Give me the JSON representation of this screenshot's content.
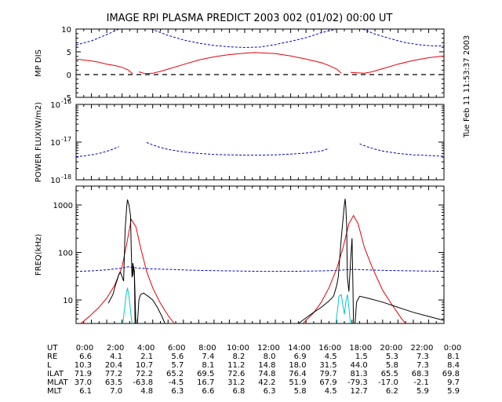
{
  "title": "IMAGE  RPI PLASMA PREDICT 2003 002 (01/02) 00:00 UT",
  "timestamp": "Tue Feb 11 11:53:37 2003",
  "colors": {
    "red": "#e8000b",
    "blue": "#0000c8",
    "black": "#000000",
    "cyan": "#00c8c8"
  },
  "chart_data": [
    {
      "type": "line",
      "panel": "mp_dis",
      "ylabel": "MP DIS",
      "ylim": [
        -5,
        10
      ],
      "yticks": [
        "-5",
        "0",
        "5",
        "10"
      ],
      "xlim": [
        0,
        24
      ],
      "reference_line": {
        "y": 0,
        "style": "dashed"
      },
      "series": [
        {
          "color": "blue",
          "x": [
            0,
            1,
            2,
            2.8
          ],
          "y": [
            6.5,
            7.4,
            8.8,
            10
          ]
        },
        {
          "color": "blue",
          "x": [
            4.9,
            6,
            7,
            8,
            9,
            10,
            11,
            12,
            13,
            14,
            15,
            16,
            17
          ],
          "y": [
            10,
            8.6,
            7.6,
            6.9,
            6.4,
            6.1,
            5.95,
            6.05,
            6.6,
            7.3,
            8.1,
            9.2,
            10
          ]
        },
        {
          "color": "blue",
          "x": [
            18.7,
            19.5,
            20.5,
            21.5,
            22.5,
            23.3,
            24
          ],
          "y": [
            10,
            8.9,
            7.9,
            7.0,
            6.5,
            6.3,
            6.3
          ]
        },
        {
          "color": "red",
          "x": [
            0,
            0.5,
            1,
            1.5,
            2,
            2.5,
            3,
            3.4,
            3.7
          ],
          "y": [
            3.4,
            3.2,
            3.0,
            2.7,
            2.3,
            2.0,
            1.6,
            1.0,
            0.15
          ]
        },
        {
          "color": "red",
          "x": [
            4.1,
            4.5,
            5,
            5.5,
            6,
            7,
            8,
            9,
            10,
            11,
            11.7,
            12,
            13,
            14,
            15,
            16,
            16.5,
            17,
            17.3
          ],
          "y": [
            0.6,
            0.2,
            0.3,
            0.7,
            1.2,
            2.2,
            3.2,
            3.9,
            4.4,
            4.7,
            4.85,
            4.8,
            4.6,
            4.1,
            3.4,
            2.6,
            2.0,
            1.2,
            0.3
          ]
        },
        {
          "color": "red",
          "x": [
            17.9,
            18.3,
            18.8,
            19.3,
            20,
            21,
            22,
            23,
            24
          ],
          "y": [
            0.5,
            0.4,
            0.3,
            0.6,
            1.3,
            2.3,
            3.1,
            3.7,
            4.1
          ]
        }
      ]
    },
    {
      "type": "line",
      "panel": "power_flux",
      "ylabel": "POWER FLUX(W/m2)",
      "yscale": "log",
      "ylim": [
        1e-18,
        1e-16
      ],
      "yticks": [
        "10",
        "10",
        "10"
      ],
      "ytick_exponents": [
        "-18",
        "-17",
        "-16"
      ],
      "xlim": [
        0,
        24
      ],
      "series": [
        {
          "color": "blue",
          "x": [
            0,
            0.5,
            1,
            1.5,
            2,
            2.5,
            2.8
          ],
          "y": [
            4.1e-18,
            4.3e-18,
            4.6e-18,
            5e-18,
            5.7e-18,
            6.7e-18,
            7.6e-18
          ]
        },
        {
          "color": "blue",
          "x": [
            4.6,
            5,
            5.5,
            6,
            7,
            8,
            9,
            10,
            11,
            12,
            13,
            14,
            15,
            16,
            16.5
          ],
          "y": [
            9.8e-18,
            8.4e-18,
            7.2e-18,
            6.4e-18,
            5.5e-18,
            5e-18,
            4.7e-18,
            4.6e-18,
            4.5e-18,
            4.5e-18,
            4.6e-18,
            4.8e-18,
            5.1e-18,
            5.8e-18,
            6.8e-18
          ]
        },
        {
          "color": "blue",
          "x": [
            18.5,
            19,
            19.5,
            20,
            21,
            22,
            23,
            24
          ],
          "y": [
            9e-18,
            7.5e-18,
            6.5e-18,
            5.8e-18,
            5e-18,
            4.6e-18,
            4.4e-18,
            4.2e-18
          ]
        }
      ]
    },
    {
      "type": "line",
      "panel": "freq",
      "ylabel": "FREQ(kHz)",
      "yscale": "log",
      "ylim": [
        3.2,
        2500
      ],
      "yticks": [
        "10",
        "100",
        "1000"
      ],
      "xlim": [
        0,
        24
      ],
      "series": [
        {
          "color": "blue",
          "x": [
            0,
            1,
            2,
            3,
            3.4,
            4,
            5,
            6,
            8,
            10,
            12,
            14,
            16,
            17,
            18,
            20,
            22,
            24
          ],
          "y": [
            40,
            41,
            43,
            47,
            50,
            47,
            45,
            44,
            42,
            41,
            40,
            40,
            41,
            42,
            44,
            42,
            41,
            40
          ]
        },
        {
          "color": "red",
          "x": [
            0.3,
            0.8,
            1.5,
            2,
            2.5,
            3,
            3.3,
            3.6,
            3.9,
            4.2,
            4.6,
            5,
            5.5,
            6,
            6.4
          ],
          "y": [
            3.2,
            4.3,
            7.0,
            11,
            20,
            50,
            150,
            500,
            350,
            130,
            40,
            18,
            8.5,
            4.7,
            3.2
          ]
        },
        {
          "color": "red",
          "x": [
            14.8,
            15.5,
            16,
            16.5,
            17,
            17.4,
            17.8,
            18.1,
            18.4,
            18.8,
            19.3,
            20,
            20.6,
            21.2,
            21.5
          ],
          "y": [
            3.2,
            5.4,
            9.0,
            18,
            45,
            120,
            400,
            600,
            400,
            130,
            50,
            16,
            8,
            4.2,
            3.2
          ]
        },
        {
          "color": "black",
          "x": [
            2.1,
            2.4,
            2.6,
            2.8,
            2.9,
            3.1,
            3.2,
            3.3,
            3.35,
            3.45,
            3.55,
            3.6,
            3.65,
            3.7,
            3.8,
            3.9,
            4.0,
            4.1,
            4.2,
            4.4,
            4.7,
            5.0,
            5.3,
            5.6,
            5.8
          ],
          "y": [
            8.5,
            13,
            22,
            35,
            38,
            25,
            300,
            900,
            1300,
            1000,
            600,
            120,
            30,
            60,
            40,
            3.2,
            3.2,
            10,
            13,
            14,
            12,
            10,
            7,
            4.5,
            3.2
          ]
        },
        {
          "color": "black",
          "x": [
            3.7,
            3.75,
            3.8,
            3.85
          ],
          "y": [
            32,
            50,
            35,
            3.2
          ]
        },
        {
          "color": "black",
          "x": [
            14.5,
            15,
            15.5,
            16,
            16.5,
            16.8,
            17,
            17.1,
            17.3,
            17.5,
            17.55,
            17.6,
            17.65,
            17.7,
            17.8,
            17.9,
            18,
            18.05,
            18.1,
            18.2,
            18.3,
            18.5,
            19,
            20,
            21,
            22,
            23,
            24
          ],
          "y": [
            3.2,
            4.2,
            5.5,
            7,
            9.5,
            12,
            20,
            30,
            200,
            1000,
            1350,
            900,
            400,
            30,
            15,
            60,
            200,
            35,
            3.2,
            3.2,
            9,
            12,
            11,
            9,
            7,
            5.5,
            4.5,
            3.7
          ]
        },
        {
          "color": "cyan",
          "x": [
            3.05,
            3.15,
            3.25,
            3.35,
            3.45,
            3.55,
            3.65
          ],
          "y": [
            3.2,
            6,
            12,
            18,
            12,
            6,
            3.2
          ]
        },
        {
          "color": "cyan",
          "x": [
            16.95,
            17.05,
            17.15,
            17.3,
            17.4,
            17.5,
            17.6,
            17.7,
            17.8,
            17.9
          ],
          "y": [
            3.2,
            6,
            12,
            13,
            8,
            5,
            9,
            13,
            7,
            3.2
          ]
        }
      ]
    }
  ],
  "x_ticks": [
    "0:00",
    "2:00",
    "4:00",
    "6:00",
    "8:00",
    "10:00",
    "12:00",
    "14:00",
    "16:00",
    "18:00",
    "20:00",
    "22:00",
    "0:00"
  ],
  "table": {
    "labels": [
      "UT",
      "RE",
      "L",
      "ILAT",
      "MLAT",
      "MLT"
    ],
    "rows": [
      [
        "6.6",
        "4.1",
        "2.1",
        "5.6",
        "7.4",
        "8.2",
        "8.0",
        "6.9",
        "4.5",
        "1.5",
        "5.3",
        "7.3",
        "8.1"
      ],
      [
        "10.3",
        "20.4",
        "10.7",
        "5.7",
        "8.1",
        "11.2",
        "14.8",
        "18.0",
        "31.5",
        "44.0",
        "5.8",
        "7.3",
        "8.4"
      ],
      [
        "71.9",
        "77.2",
        "72.2",
        "65.2",
        "69.5",
        "72.6",
        "74.8",
        "76.4",
        "79.7",
        "81.3",
        "65.5",
        "68.3",
        "69.8"
      ],
      [
        "37.0",
        "63.5",
        "-63.8",
        "-4.5",
        "16.7",
        "31.2",
        "42.2",
        "51.9",
        "67.9",
        "-79.3",
        "-17.0",
        "-2.1",
        "9.7"
      ],
      [
        "6.1",
        "7.0",
        "4.8",
        "6.3",
        "6.6",
        "6.8",
        "6.3",
        "5.8",
        "4.5",
        "12.7",
        "6.2",
        "5.9",
        "5.9"
      ]
    ]
  }
}
